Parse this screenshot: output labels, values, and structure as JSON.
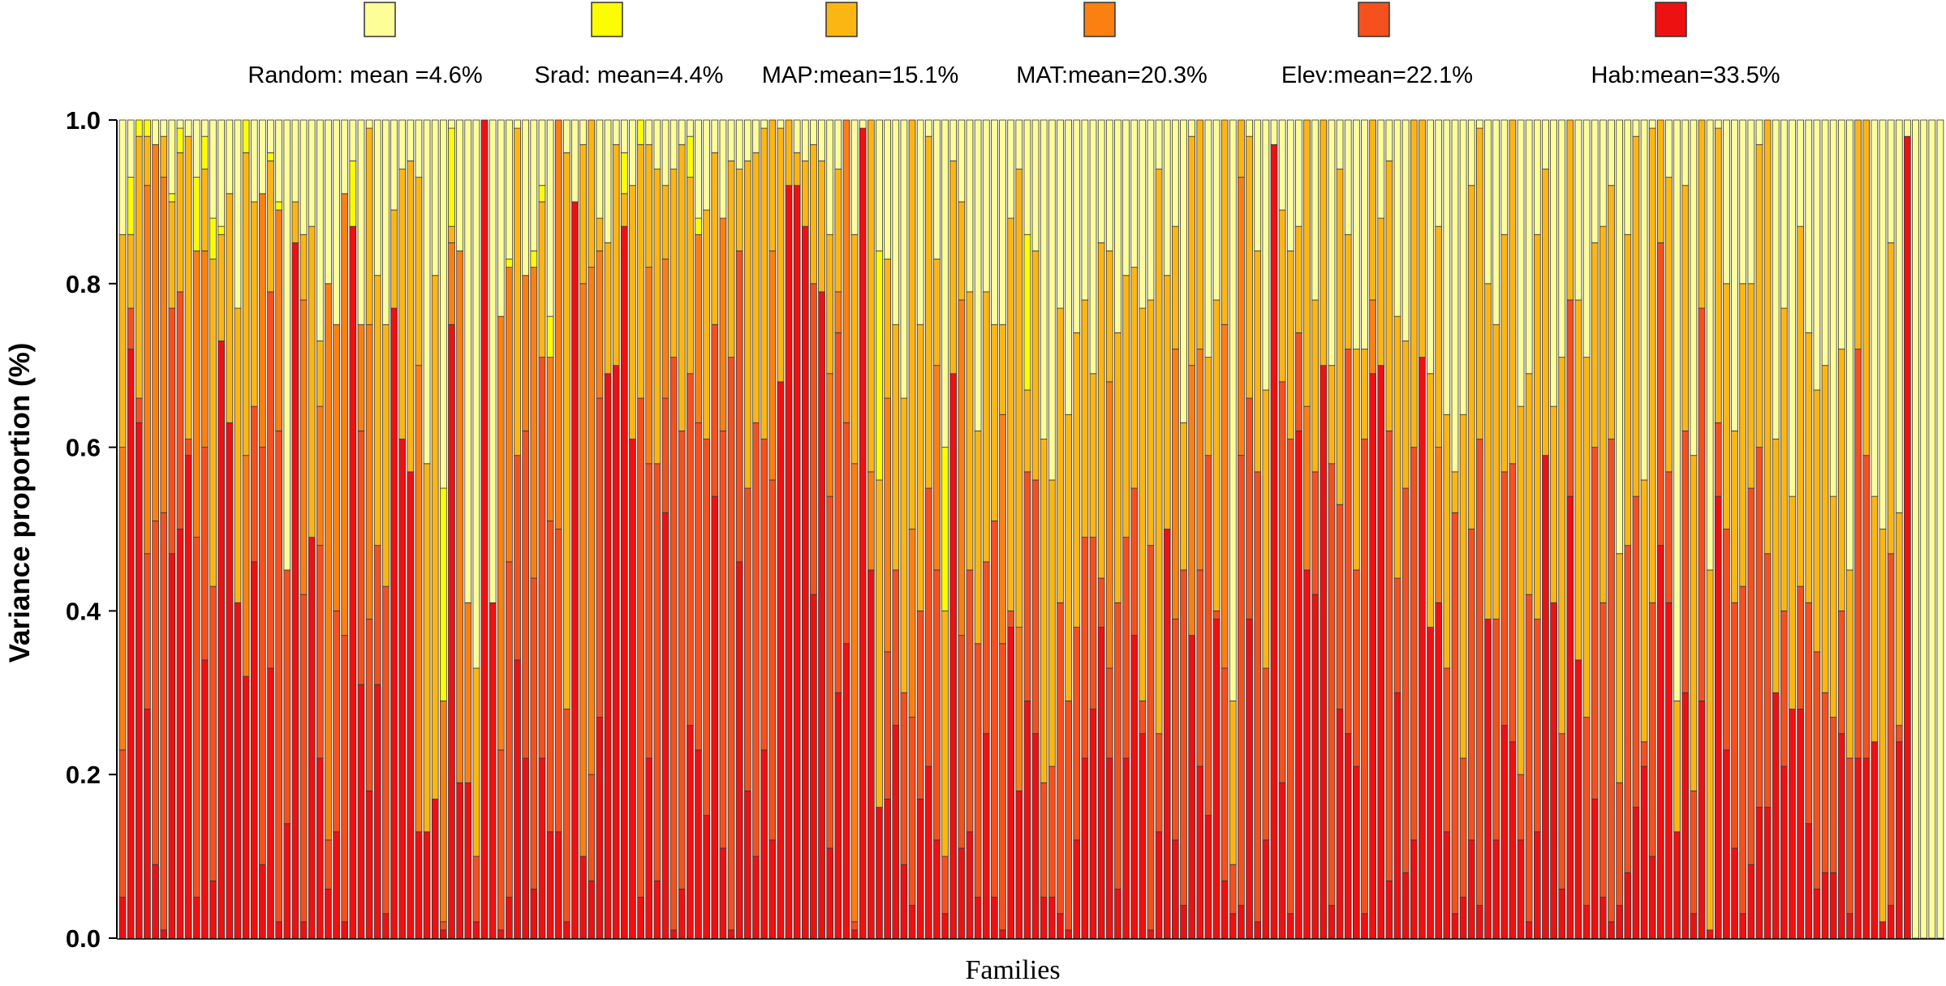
{
  "chart_data": {
    "type": "bar",
    "stacked": true,
    "xlabel": "Families",
    "ylabel": "Variance proportion (%)",
    "ylim": [
      0,
      1
    ],
    "yticks": [
      "0.0",
      "0.2",
      "0.4",
      "0.6",
      "0.8",
      "1.0"
    ],
    "legend_position": "top",
    "n_bars": 222,
    "series": [
      {
        "name": "Hab",
        "label": "Hab:mean=33.5%",
        "color": "#ee1111",
        "values": [
          0.05,
          0.72,
          0.63,
          0.28,
          0.09,
          0.01,
          0.47,
          0.5,
          0.59,
          0.05,
          0.34,
          0.07,
          0.73,
          0.63,
          0.41,
          0.32,
          0.46,
          0.09,
          0.33,
          0.02,
          0.14,
          0.85,
          0.02,
          0.49,
          0.22,
          0.06,
          0.13,
          0.02,
          0.87,
          0.31,
          0.18,
          0.31,
          0.03,
          0.77,
          0.61,
          0.57,
          0.13,
          0.13,
          0.17,
          0.01,
          0.75,
          0.19,
          0.19,
          0.02,
          1.0,
          0.41,
          0.01,
          0.05,
          0.34,
          0.22,
          0.06,
          0.22,
          0.13,
          0.13,
          0.02,
          0.9,
          0.1,
          0.07,
          0.27,
          0.69,
          0.7,
          0.87,
          0.61,
          0.05,
          0.22,
          0.07,
          0.52,
          0.01,
          0.06,
          0.26,
          0.23,
          0.15,
          0.54,
          0.11,
          0.01,
          0.46,
          0.18,
          0.1,
          0.23,
          0.12,
          0.68,
          0.92,
          0.92,
          0.87,
          0.42,
          0.79,
          0.11,
          0.3,
          0.36,
          0.01,
          0.99,
          0.45,
          0.16,
          0.17,
          0.26,
          0.09,
          0.04,
          0.17,
          0.21,
          0.12,
          0.03,
          0.69,
          0.11,
          0.13,
          0.05,
          0.25,
          0.05,
          0.01,
          0.38,
          0.18,
          0.29,
          0.25,
          0.05,
          0.05,
          0.03,
          0.01,
          0.12,
          0.22,
          0.28,
          0.38,
          0.22,
          0.06,
          0.22,
          0.37,
          0.25,
          0.01,
          0.13,
          0.5,
          0.12,
          0.04,
          0.37,
          0.21,
          0.15,
          0.39,
          0.07,
          0.03,
          0.04,
          0.39,
          0.02,
          0.12,
          0.97,
          0.19,
          0.03,
          0.62,
          0.45,
          0.42,
          0.7,
          0.04,
          0.28,
          0.25,
          0.21,
          0.03,
          0.69,
          0.7,
          0.07,
          0.3,
          0.08,
          0.12,
          0.71,
          0.38,
          0.41,
          0.13,
          0.03,
          0.05,
          0.12,
          0.04,
          0.39,
          0.12,
          0.26,
          0.24,
          0.12,
          0.02,
          0.13,
          0.59,
          0.41,
          0.06,
          0.54,
          0.34,
          0.04,
          0.17,
          0.05,
          0.02,
          0.04,
          0.08,
          0.16,
          0.21,
          0.1,
          0.48,
          0.41,
          0.13,
          0.3,
          0.03,
          0.29,
          0.01,
          0.54,
          0.23,
          0.11,
          0.03,
          0.09,
          0.16,
          0.16,
          0.3,
          0.21,
          0.28,
          0.28,
          0.14,
          0.06,
          0.08,
          0.08,
          0.25,
          0.03,
          0.22,
          0.22,
          0.24,
          0.02,
          0.04,
          0.24,
          0.98
        ]
      },
      {
        "name": "Elev",
        "label": "Elev:mean=22.1%",
        "color": "#f4511e",
        "values": [
          0.18,
          0.05,
          0.03,
          0.19,
          0.42,
          0.51,
          0.3,
          0.29,
          0.02,
          0.44,
          0.26,
          0.36,
          0.0,
          0.0,
          0.0,
          0.0,
          0.19,
          0.51,
          0.46,
          0.6,
          0.31,
          0.0,
          0.4,
          0.0,
          0.26,
          0.06,
          0.27,
          0.35,
          0.0,
          0.31,
          0.21,
          0.17,
          0.4,
          0.0,
          0.0,
          0.0,
          0.0,
          0.0,
          0.0,
          0.01,
          0.0,
          0.0,
          0.0,
          0.08,
          0.0,
          0.0,
          0.22,
          0.41,
          0.25,
          0.4,
          0.38,
          0.49,
          0.38,
          0.37,
          0.26,
          0.0,
          0.0,
          0.13,
          0.39,
          0.0,
          0.0,
          0.0,
          0.0,
          0.61,
          0.36,
          0.51,
          0.14,
          0.7,
          0.56,
          0.43,
          0.4,
          0.46,
          0.21,
          0.51,
          0.7,
          0.38,
          0.37,
          0.53,
          0.38,
          0.44,
          0.0,
          0.0,
          0.0,
          0.0,
          0.38,
          0.0,
          0.43,
          0.44,
          0.27,
          0.01,
          0.0,
          0.0,
          0.0,
          0.18,
          0.19,
          0.21,
          0.23,
          0.23,
          0.34,
          0.33,
          0.07,
          0.0,
          0.26,
          0.32,
          0.31,
          0.21,
          0.46,
          0.35,
          0.02,
          0.0,
          0.28,
          0.31,
          0.14,
          0.16,
          0.38,
          0.28,
          0.26,
          0.27,
          0.21,
          0.06,
          0.11,
          0.35,
          0.27,
          0.18,
          0.04,
          0.47,
          0.12,
          0.0,
          0.27,
          0.41,
          0.0,
          0.24,
          0.44,
          0.01,
          0.26,
          0.06,
          0.55,
          0.27,
          0.55,
          0.21,
          0.0,
          0.49,
          0.58,
          0.12,
          0.0,
          0.15,
          0.0,
          0.54,
          0.25,
          0.47,
          0.24,
          0.58,
          0.0,
          0.0,
          0.55,
          0.14,
          0.47,
          0.48,
          0.0,
          0.0,
          0.0,
          0.2,
          0.49,
          0.17,
          0.38,
          0.57,
          0.0,
          0.27,
          0.31,
          0.34,
          0.08,
          0.4,
          0.26,
          0.0,
          0.0,
          0.19,
          0.24,
          0.0,
          0.23,
          0.43,
          0.36,
          0.59,
          0.15,
          0.4,
          0.38,
          0.03,
          0.31,
          0.37,
          0.16,
          0.0,
          0.32,
          0.15,
          0.48,
          0.0,
          0.09,
          0.27,
          0.3,
          0.4,
          0.46,
          0.44,
          0.31,
          0.0,
          0.19,
          0.0,
          0.15,
          0.27,
          0.29,
          0.22,
          0.19,
          0.15,
          0.19,
          0.5,
          0.37,
          0.0,
          0.0,
          0.43,
          0.02
        ]
      },
      {
        "name": "MAT",
        "label": "MAT:mean=20.3%",
        "color": "#fb8012",
        "values": [
          0.37,
          0.0,
          0.0,
          0.45,
          0.46,
          0.41,
          0.0,
          0.0,
          0.0,
          0.35,
          0.24,
          0.0,
          0.0,
          0.0,
          0.0,
          0.27,
          0.0,
          0.31,
          0.0,
          0.27,
          0.0,
          0.0,
          0.36,
          0.0,
          0.17,
          0.68,
          0.35,
          0.54,
          0.0,
          0.13,
          0.36,
          0.0,
          0.0,
          0.0,
          0.0,
          0.0,
          0.57,
          0.0,
          0.0,
          0.27,
          0.1,
          0.65,
          0.22,
          0.0,
          0.0,
          0.0,
          0.53,
          0.36,
          0.0,
          0.19,
          0.38,
          0.0,
          0.2,
          0.5,
          0.0,
          0.0,
          0.7,
          0.62,
          0.18,
          0.0,
          0.0,
          0.0,
          0.0,
          0.0,
          0.24,
          0.0,
          0.17,
          0.0,
          0.0,
          0.0,
          0.23,
          0.0,
          0.0,
          0.26,
          0.0,
          0.0,
          0.0,
          0.0,
          0.0,
          0.28,
          0.0,
          0.0,
          0.0,
          0.0,
          0.0,
          0.0,
          0.15,
          0.05,
          0.37,
          0.56,
          0.0,
          0.12,
          0.0,
          0.31,
          0.0,
          0.0,
          0.23,
          0.0,
          0.0,
          0.25,
          0.0,
          0.0,
          0.41,
          0.0,
          0.0,
          0.0,
          0.0,
          0.28,
          0.0,
          0.2,
          0.0,
          0.0,
          0.0,
          0.0,
          0.0,
          0.0,
          0.0,
          0.0,
          0.0,
          0.0,
          0.35,
          0.0,
          0.0,
          0.0,
          0.0,
          0.0,
          0.0,
          0.0,
          0.33,
          0.0,
          0.33,
          0.27,
          0.0,
          0.0,
          0.42,
          0.0,
          0.34,
          0.0,
          0.0,
          0.0,
          0.0,
          0.0,
          0.0,
          0.0,
          0.2,
          0.0,
          0.0,
          0.0,
          0.0,
          0.0,
          0.0,
          0.0,
          0.09,
          0.0,
          0.0,
          0.0,
          0.0,
          0.0,
          0.0,
          0.0,
          0.19,
          0.0,
          0.0,
          0.0,
          0.0,
          0.0,
          0.0,
          0.0,
          0.0,
          0.0,
          0.0,
          0.0,
          0.0,
          0.0,
          0.0,
          0.0,
          0.0,
          0.0,
          0.0,
          0.0,
          0.0,
          0.0,
          0.0,
          0.0,
          0.0,
          0.0,
          0.0,
          0.0,
          0.0,
          0.0,
          0.0,
          0.0,
          0.0,
          0.0,
          0.0,
          0.0,
          0.0,
          0.0,
          0.0,
          0.0,
          0.0,
          0.0,
          0.0,
          0.0,
          0.0,
          0.0,
          0.0,
          0.0,
          0.0,
          0.0,
          0.0,
          0.0,
          0.0,
          0.0,
          0.0,
          0.0,
          0.0,
          0.0,
          0.0,
          0.0,
          0.0,
          0.0
        ]
      },
      {
        "name": "MAP",
        "label": "MAP:mean=15.1%",
        "color": "#fcb613",
        "values": [
          0.26,
          0.09,
          0.32,
          0.06,
          0.0,
          0.05,
          0.13,
          0.17,
          0.37,
          0.0,
          0.1,
          0.4,
          0.13,
          0.28,
          0.36,
          0.37,
          0.25,
          0.0,
          0.16,
          0.0,
          0.0,
          0.05,
          0.08,
          0.38,
          0.08,
          0.0,
          0.0,
          0.0,
          0.0,
          0.0,
          0.24,
          0.33,
          0.32,
          0.12,
          0.33,
          0.38,
          0.23,
          0.45,
          0.64,
          0.0,
          0.02,
          0.0,
          0.0,
          0.23,
          0.0,
          0.0,
          0.0,
          0.0,
          0.4,
          0.0,
          0.0,
          0.19,
          0.0,
          0.0,
          0.68,
          0.0,
          0.17,
          0.21,
          0.04,
          0.16,
          0.27,
          0.04,
          0.31,
          0.31,
          0.15,
          0.36,
          0.09,
          0.23,
          0.35,
          0.24,
          0.0,
          0.28,
          0.21,
          0.0,
          0.24,
          0.1,
          0.4,
          0.33,
          0.38,
          0.17,
          0.31,
          0.08,
          0.04,
          0.08,
          0.17,
          0.16,
          0.17,
          0.15,
          0.31,
          0.28,
          0.0,
          0.43,
          0.4,
          0.17,
          0.3,
          0.36,
          0.56,
          0.35,
          0.43,
          0.13,
          0.3,
          0.26,
          0.12,
          0.34,
          0.26,
          0.33,
          0.24,
          0.11,
          0.48,
          0.56,
          0.1,
          0.28,
          0.42,
          0.35,
          0.36,
          0.35,
          0.36,
          0.29,
          0.2,
          0.41,
          0.16,
          0.33,
          0.32,
          0.27,
          0.48,
          0.3,
          0.69,
          0.31,
          0.15,
          0.18,
          0.28,
          0.29,
          0.12,
          0.38,
          0.4,
          0.2,
          0.5,
          0.32,
          0.27,
          0.34,
          0.0,
          0.21,
          0.23,
          0.13,
          0.4,
          0.21,
          0.3,
          0.12,
          0.41,
          0.14,
          0.27,
          0.11,
          0.22,
          0.18,
          0.33,
          0.32,
          0.18,
          0.47,
          0.29,
          0.31,
          0.27,
          0.31,
          0.05,
          0.42,
          0.42,
          0.38,
          0.41,
          0.36,
          0.29,
          0.47,
          0.45,
          0.27,
          0.47,
          0.35,
          0.24,
          0.46,
          0.38,
          0.44,
          0.44,
          0.25,
          0.46,
          0.31,
          0.28,
          0.38,
          0.44,
          0.32,
          0.58,
          0.46,
          0.36,
          0.16,
          0.3,
          0.41,
          0.43,
          0.44,
          0.36,
          0.3,
          0.21,
          0.37,
          0.25,
          0.37,
          0.54,
          0.31,
          0.37,
          0.26,
          0.44,
          0.33,
          0.32,
          0.4,
          0.27,
          0.32,
          0.23,
          0.33,
          0.44,
          0.3,
          0.48,
          0.38,
          0.26,
          0.0
        ]
      },
      {
        "name": "Srad",
        "label": "Srad: mean=4.4%",
        "color": "#fcfd00",
        "values": [
          0.0,
          0.07,
          0.04,
          0.02,
          0.0,
          0.0,
          0.01,
          0.03,
          0.0,
          0.09,
          0.04,
          0.05,
          0.01,
          0.0,
          0.0,
          0.08,
          0.0,
          0.0,
          0.01,
          0.01,
          0.0,
          0.0,
          0.0,
          0.0,
          0.0,
          0.0,
          0.0,
          0.0,
          0.08,
          0.0,
          0.0,
          0.0,
          0.0,
          0.0,
          0.0,
          0.0,
          0.0,
          0.0,
          0.0,
          0.26,
          0.12,
          0.0,
          0.0,
          0.0,
          0.0,
          0.0,
          0.0,
          0.01,
          0.0,
          0.0,
          0.02,
          0.02,
          0.05,
          0.0,
          0.0,
          0.0,
          0.0,
          0.0,
          0.0,
          0.0,
          0.0,
          0.05,
          0.0,
          0.04,
          0.0,
          0.0,
          0.0,
          0.0,
          0.0,
          0.05,
          0.02,
          0.0,
          0.0,
          0.0,
          0.0,
          0.0,
          0.0,
          0.0,
          0.0,
          0.0,
          0.0,
          0.0,
          0.0,
          0.0,
          0.0,
          0.0,
          0.0,
          0.0,
          0.0,
          0.0,
          0.0,
          0.0,
          0.28,
          0.0,
          0.0,
          0.0,
          0.0,
          0.0,
          0.0,
          0.0,
          0.2,
          0.0,
          0.0,
          0.0,
          0.0,
          0.0,
          0.0,
          0.0,
          0.0,
          0.0,
          0.19,
          0.0,
          0.0,
          0.0,
          0.0,
          0.0,
          0.0,
          0.0,
          0.0,
          0.0,
          0.0,
          0.0,
          0.0,
          0.0,
          0.0,
          0.0,
          0.0,
          0.0,
          0.0,
          0.0,
          0.0,
          0.0,
          0.0,
          0.0,
          0.0,
          0.0,
          0.0,
          0.0,
          0.0,
          0.0,
          0.0,
          0.0,
          0.0,
          0.0,
          0.0,
          0.0,
          0.0,
          0.0,
          0.0,
          0.0,
          0.0,
          0.0,
          0.0,
          0.0,
          0.0,
          0.0,
          0.0,
          0.0,
          0.0,
          0.0,
          0.0,
          0.0,
          0.0,
          0.0,
          0.0,
          0.0,
          0.0,
          0.0,
          0.0,
          0.0,
          0.0,
          0.0,
          0.0,
          0.0,
          0.0,
          0.0,
          0.0,
          0.0,
          0.0,
          0.0,
          0.0,
          0.0,
          0.0,
          0.0,
          0.0,
          0.0,
          0.0,
          0.0,
          0.0,
          0.0,
          0.0,
          0.0,
          0.0,
          0.0,
          0.0,
          0.0,
          0.0,
          0.0,
          0.0,
          0.0,
          0.0,
          0.0,
          0.0,
          0.0,
          0.0,
          0.0,
          0.0,
          0.0,
          0.0,
          0.0,
          0.0,
          0.0,
          0.0,
          0.0,
          0.0,
          0.0,
          0.0,
          0.0,
          0.0,
          0.0,
          0.0,
          0.0,
          0.0,
          0.0
        ]
      },
      {
        "name": "Random",
        "label": "Random: mean =4.6%",
        "color": "#fefe99",
        "values": "remainder"
      }
    ]
  }
}
